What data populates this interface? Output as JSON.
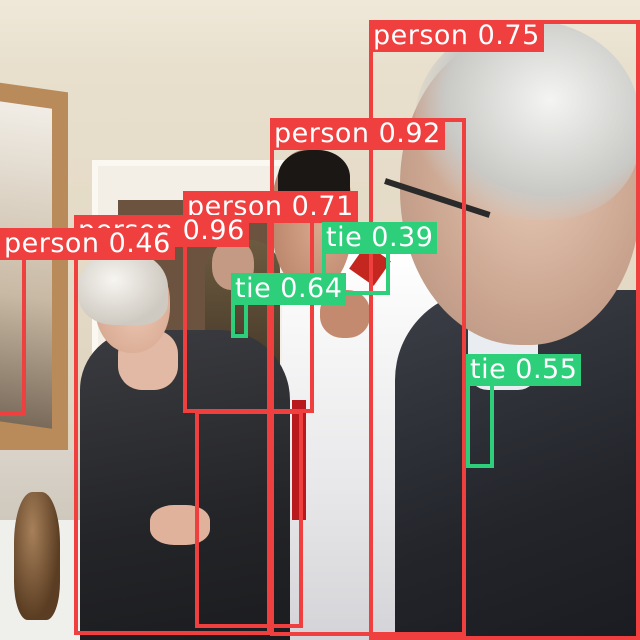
{
  "image": {
    "description_tags": [
      "group-of-people",
      "hallway",
      "mirror",
      "detection-overlay"
    ]
  },
  "colors": {
    "person": "#ef3f3f",
    "tie": "#2ecf7a"
  },
  "detections": [
    {
      "label": "person",
      "score": "0.75",
      "text": "person 0.75"
    },
    {
      "label": "person",
      "score": "0.92",
      "text": "person 0.92"
    },
    {
      "label": "person",
      "score": "0.71",
      "text": "person 0.71"
    },
    {
      "label": "person",
      "score": "0.96",
      "text": "person 0.96"
    },
    {
      "label": "person",
      "score": "0.46",
      "text": "person 0.46"
    },
    {
      "label": "tie",
      "score": "0.39",
      "text": "tie 0.39"
    },
    {
      "label": "tie",
      "score": "0.64",
      "text": "tie 0.64"
    },
    {
      "label": "tie",
      "score": "0.55",
      "text": "tie 0.55"
    }
  ]
}
